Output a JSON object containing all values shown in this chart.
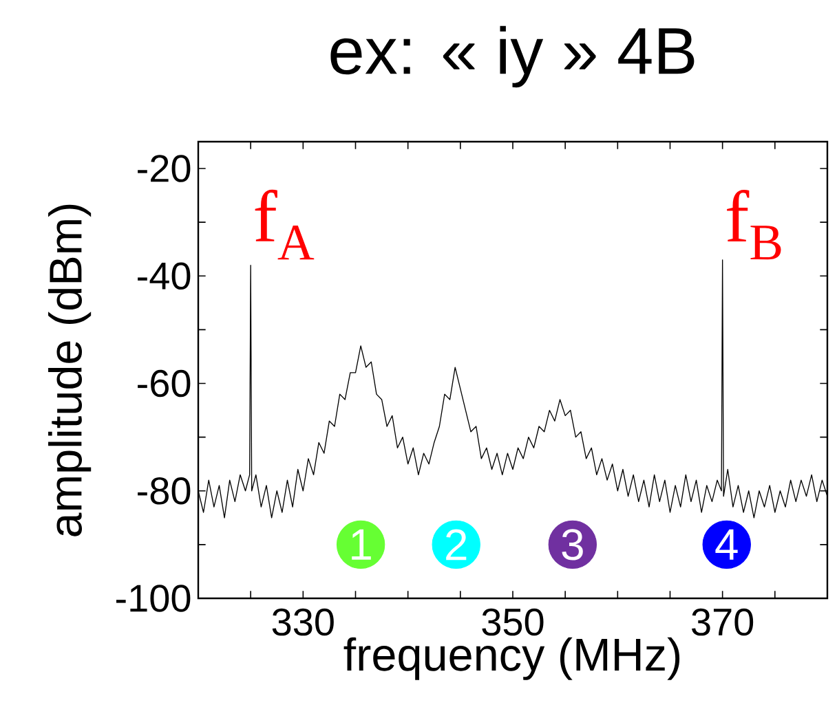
{
  "chart_data": {
    "type": "line",
    "title": "ex: « iy » 4B",
    "xlabel": "frequency (MHz)",
    "ylabel": "amplitude (dBm)",
    "xlim": [
      320,
      380
    ],
    "ylim": [
      -100,
      -15
    ],
    "xticks": [
      {
        "value": 325,
        "label": null
      },
      330,
      {
        "value": 335,
        "label": null
      },
      {
        "value": 340,
        "label": null
      },
      {
        "value": 345,
        "label": null
      },
      350,
      {
        "value": 355,
        "label": null
      },
      {
        "value": 360,
        "label": null
      },
      {
        "value": 365,
        "label": null
      },
      370,
      {
        "value": 375,
        "label": null
      }
    ],
    "yticks": [
      -100,
      {
        "value": -90,
        "label": null
      },
      -80,
      {
        "value": -70,
        "label": null
      },
      -60,
      {
        "value": -50,
        "label": null
      },
      -40,
      {
        "value": -30,
        "label": null
      },
      -20
    ],
    "grid": false,
    "legend": false,
    "series": [
      {
        "color": "#000000",
        "x": [
          320,
          320.5,
          321,
          321.5,
          322,
          322.5,
          323,
          323.5,
          324,
          324.5,
          324.9,
          325.0,
          325.1,
          325.5,
          326,
          326.5,
          327,
          327.5,
          328,
          328.5,
          329,
          329.5,
          330,
          330.5,
          331,
          331.5,
          332,
          332.5,
          333,
          333.5,
          334,
          334.5,
          335,
          335.5,
          336,
          336.5,
          337,
          337.5,
          338,
          338.5,
          339,
          339.5,
          340,
          340.5,
          341,
          341.5,
          342,
          342.5,
          343,
          343.5,
          344,
          344.5,
          345,
          345.5,
          346,
          346.5,
          347,
          347.5,
          348,
          348.5,
          349,
          349.5,
          350,
          350.5,
          351,
          351.5,
          352,
          352.5,
          353,
          353.5,
          354,
          354.5,
          355,
          355.5,
          356,
          356.5,
          357,
          357.5,
          358,
          358.5,
          359,
          359.5,
          360,
          360.5,
          361,
          361.5,
          362,
          362.5,
          363,
          363.5,
          364,
          364.5,
          365,
          365.5,
          366,
          366.5,
          367,
          367.5,
          368,
          368.5,
          369,
          369.5,
          369.9,
          370.0,
          370.1,
          370.5,
          371,
          371.5,
          372,
          372.5,
          373,
          373.5,
          374,
          374.5,
          375,
          375.5,
          376,
          376.5,
          377,
          377.5,
          378,
          378.5,
          379,
          379.5,
          380
        ],
        "values": [
          -80,
          -84,
          -78,
          -83,
          -79,
          -85,
          -78,
          -82,
          -77,
          -80,
          -77,
          -38,
          -80,
          -77,
          -83,
          -79,
          -85,
          -80,
          -84,
          -78,
          -83,
          -76,
          -80,
          -74,
          -77,
          -71,
          -73,
          -67,
          -68,
          -62,
          -63,
          -58,
          -58,
          -53,
          -57,
          -56,
          -62,
          -63,
          -68,
          -66,
          -72,
          -70,
          -75,
          -72,
          -77,
          -73,
          -75,
          -71,
          -68,
          -62,
          -63,
          -57,
          -61,
          -65,
          -69,
          -68,
          -74,
          -72,
          -76,
          -73,
          -77,
          -73,
          -76,
          -72,
          -74,
          -70,
          -72,
          -68,
          -69,
          -65,
          -67,
          -63,
          -66,
          -65,
          -70,
          -69,
          -74,
          -72,
          -77,
          -74,
          -78,
          -75,
          -80,
          -76,
          -81,
          -77,
          -82,
          -78,
          -83,
          -77,
          -82,
          -78,
          -84,
          -79,
          -83,
          -77,
          -82,
          -78,
          -84,
          -79,
          -82,
          -78,
          -80,
          -37,
          -81,
          -76,
          -83,
          -79,
          -84,
          -80,
          -85,
          -80,
          -83,
          -79,
          -84,
          -80,
          -83,
          -78,
          -82,
          -78,
          -81,
          -77,
          -82,
          -78,
          -81
        ]
      },
      {
        "type": "scatter",
        "colors": [
          "#66ff33",
          "#00ffff",
          "#7030a0",
          "#0000ff"
        ],
        "x": [
          335.5,
          344.6,
          355.7,
          370.4
        ],
        "values": [
          -90,
          -90,
          -90,
          -90
        ]
      }
    ],
    "annotations": [
      {
        "text": "f$_{A}$",
        "x": 325,
        "y": -37
      },
      {
        "text": "f$_{B}$",
        "x": 370,
        "y": -37
      },
      {
        "text": "1",
        "x": 335.5,
        "y": -90
      },
      {
        "text": "2",
        "x": 344.6,
        "y": -90
      },
      {
        "text": "3",
        "x": 355.7,
        "y": -90
      },
      {
        "text": "4",
        "x": 370.4,
        "y": -90
      }
    ]
  }
}
